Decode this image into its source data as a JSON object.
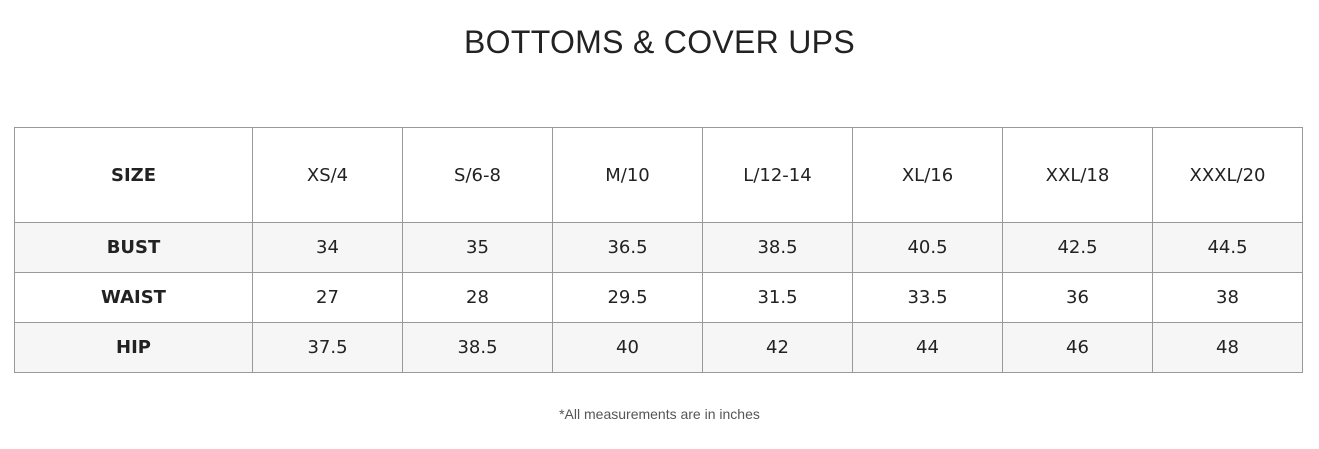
{
  "title": "BOTTOMS & COVER UPS",
  "table": {
    "header": [
      "SIZE",
      "XS/4",
      "S/6-8",
      "M/10",
      "L/12-14",
      "XL/16",
      "XXL/18",
      "XXXL/20"
    ],
    "rows": [
      [
        "BUST",
        "34",
        "35",
        "36.5",
        "38.5",
        "40.5",
        "42.5",
        "44.5"
      ],
      [
        "WAIST",
        "27",
        "28",
        "29.5",
        "31.5",
        "33.5",
        "36",
        "38"
      ],
      [
        "HIP",
        "37.5",
        "38.5",
        "40",
        "42",
        "44",
        "46",
        "48"
      ]
    ]
  },
  "footnote": "*All measurements are in inches"
}
